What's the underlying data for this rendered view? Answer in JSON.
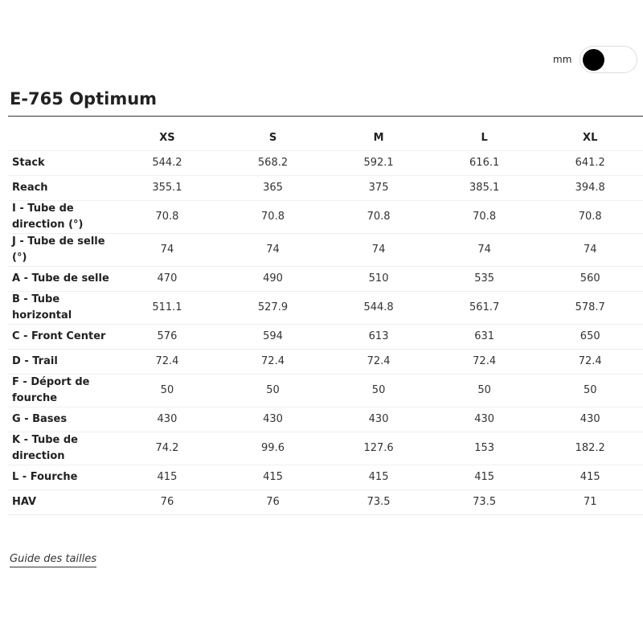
{
  "unit_toggle": {
    "label": "mm"
  },
  "title": "E-765 Optimum",
  "table": {
    "columns": [
      "XS",
      "S",
      "M",
      "L",
      "XL"
    ],
    "rows": [
      {
        "label": "Stack",
        "values": [
          "544.2",
          "568.2",
          "592.1",
          "616.1",
          "641.2"
        ]
      },
      {
        "label": "Reach",
        "values": [
          "355.1",
          "365",
          "375",
          "385.1",
          "394.8"
        ]
      },
      {
        "label": "I - Tube de direction (°)",
        "values": [
          "70.8",
          "70.8",
          "70.8",
          "70.8",
          "70.8"
        ]
      },
      {
        "label": "J - Tube de selle (°)",
        "values": [
          "74",
          "74",
          "74",
          "74",
          "74"
        ]
      },
      {
        "label": "A - Tube de selle",
        "values": [
          "470",
          "490",
          "510",
          "535",
          "560"
        ]
      },
      {
        "label": "B - Tube horizontal",
        "values": [
          "511.1",
          "527.9",
          "544.8",
          "561.7",
          "578.7"
        ]
      },
      {
        "label": "C - Front Center",
        "values": [
          "576",
          "594",
          "613",
          "631",
          "650"
        ]
      },
      {
        "label": "D - Trail",
        "values": [
          "72.4",
          "72.4",
          "72.4",
          "72.4",
          "72.4"
        ]
      },
      {
        "label": "F - Déport de fourche",
        "values": [
          "50",
          "50",
          "50",
          "50",
          "50"
        ]
      },
      {
        "label": "G - Bases",
        "values": [
          "430",
          "430",
          "430",
          "430",
          "430"
        ]
      },
      {
        "label": "K - Tube de direction",
        "values": [
          "74.2",
          "99.6",
          "127.6",
          "153",
          "182.2"
        ]
      },
      {
        "label": "L - Fourche",
        "values": [
          "415",
          "415",
          "415",
          "415",
          "415"
        ]
      },
      {
        "label": "HAV",
        "values": [
          "76",
          "76",
          "73.5",
          "73.5",
          "71"
        ]
      }
    ]
  },
  "size_guide_link": "Guide des tailles"
}
